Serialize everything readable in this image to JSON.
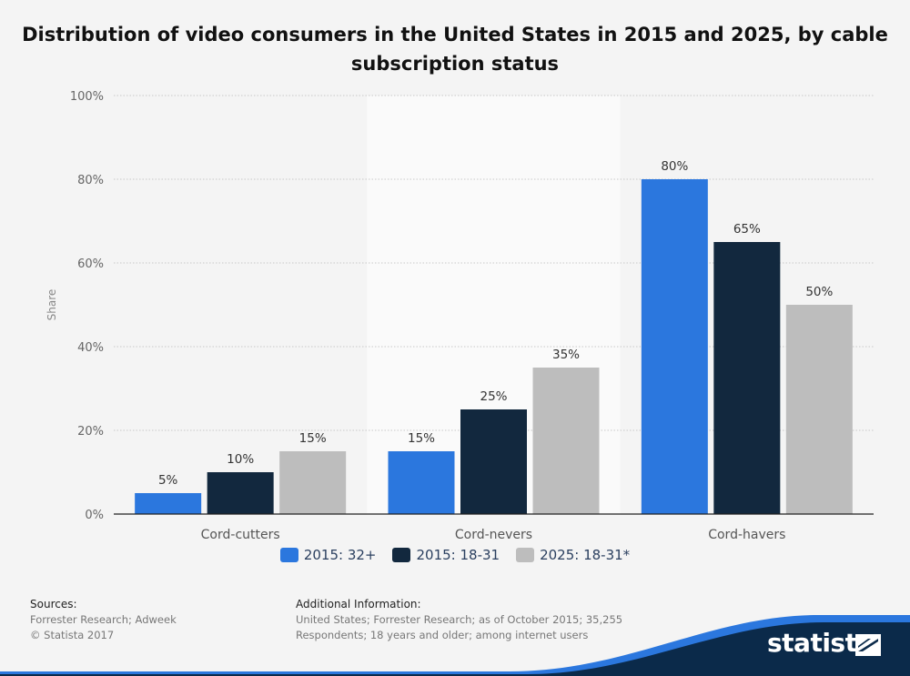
{
  "chart_data": {
    "type": "bar",
    "title": "Distribution of video consumers in the United States in 2015 and 2025, by cable subscription status",
    "ylabel": "Share",
    "ylim": [
      0,
      100
    ],
    "yticks": [
      "0%",
      "20%",
      "40%",
      "60%",
      "80%",
      "100%"
    ],
    "categories": [
      "Cord-cutters",
      "Cord-nevers",
      "Cord-havers"
    ],
    "highlighted_category": "Cord-nevers",
    "series": [
      {
        "name": "2015: 32+",
        "color": "#2b77de",
        "values": [
          5,
          15,
          80
        ],
        "labels": [
          "5%",
          "15%",
          "80%"
        ]
      },
      {
        "name": "2015: 18-31",
        "color": "#12283e",
        "values": [
          10,
          25,
          65
        ],
        "labels": [
          "10%",
          "25%",
          "65%"
        ]
      },
      {
        "name": "2025: 18-31*",
        "color": "#bdbdbd",
        "values": [
          15,
          35,
          50
        ],
        "labels": [
          "15%",
          "35%",
          "50%"
        ]
      }
    ],
    "grid": true,
    "legend": "bottom-center"
  },
  "footer": {
    "sources_heading": "Sources:",
    "sources_text": "Forrester Research; Adweek",
    "copyright": "© Statista 2017",
    "additional_heading": "Additional Information:",
    "additional_line1": "United States; Forrester Research; as of October 2015; 35,255",
    "additional_line2": "Respondents; 18 years and older; among internet users"
  },
  "brand": {
    "name": "statista",
    "colors": {
      "dark": "#0b2a4a",
      "accent": "#2b77de"
    }
  }
}
